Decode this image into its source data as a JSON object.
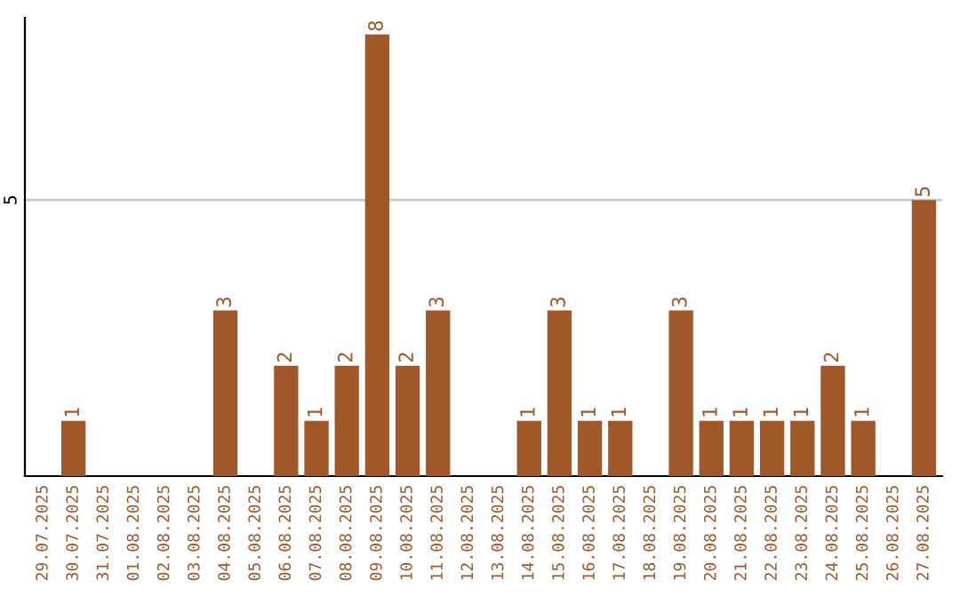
{
  "chart_data": {
    "type": "bar",
    "categories": [
      "29.07.2025",
      "30.07.2025",
      "31.07.2025",
      "01.08.2025",
      "02.08.2025",
      "03.08.2025",
      "04.08.2025",
      "05.08.2025",
      "06.08.2025",
      "07.08.2025",
      "08.08.2025",
      "09.08.2025",
      "10.08.2025",
      "11.08.2025",
      "12.08.2025",
      "13.08.2025",
      "14.08.2025",
      "15.08.2025",
      "16.08.2025",
      "17.08.2025",
      "18.08.2025",
      "19.08.2025",
      "20.08.2025",
      "21.08.2025",
      "22.08.2025",
      "23.08.2025",
      "24.08.2025",
      "25.08.2025",
      "26.08.2025",
      "27.08.2025"
    ],
    "values": [
      0,
      1,
      0,
      0,
      0,
      0,
      3,
      0,
      2,
      1,
      2,
      8,
      2,
      3,
      0,
      0,
      1,
      3,
      1,
      1,
      0,
      3,
      1,
      1,
      1,
      1,
      2,
      1,
      0,
      5
    ],
    "value_labels": [
      null,
      "1",
      null,
      null,
      null,
      null,
      "3",
      null,
      "2",
      "1",
      "2",
      "8",
      "2",
      "3",
      null,
      null,
      "1",
      "3",
      "1",
      "1",
      null,
      "3",
      "1",
      "1",
      "1",
      "1",
      "2",
      "1",
      null,
      "5"
    ],
    "color": "#a0582a",
    "ylim": [
      0,
      8.3
    ],
    "yticks": [
      5
    ],
    "grid": "y"
  }
}
